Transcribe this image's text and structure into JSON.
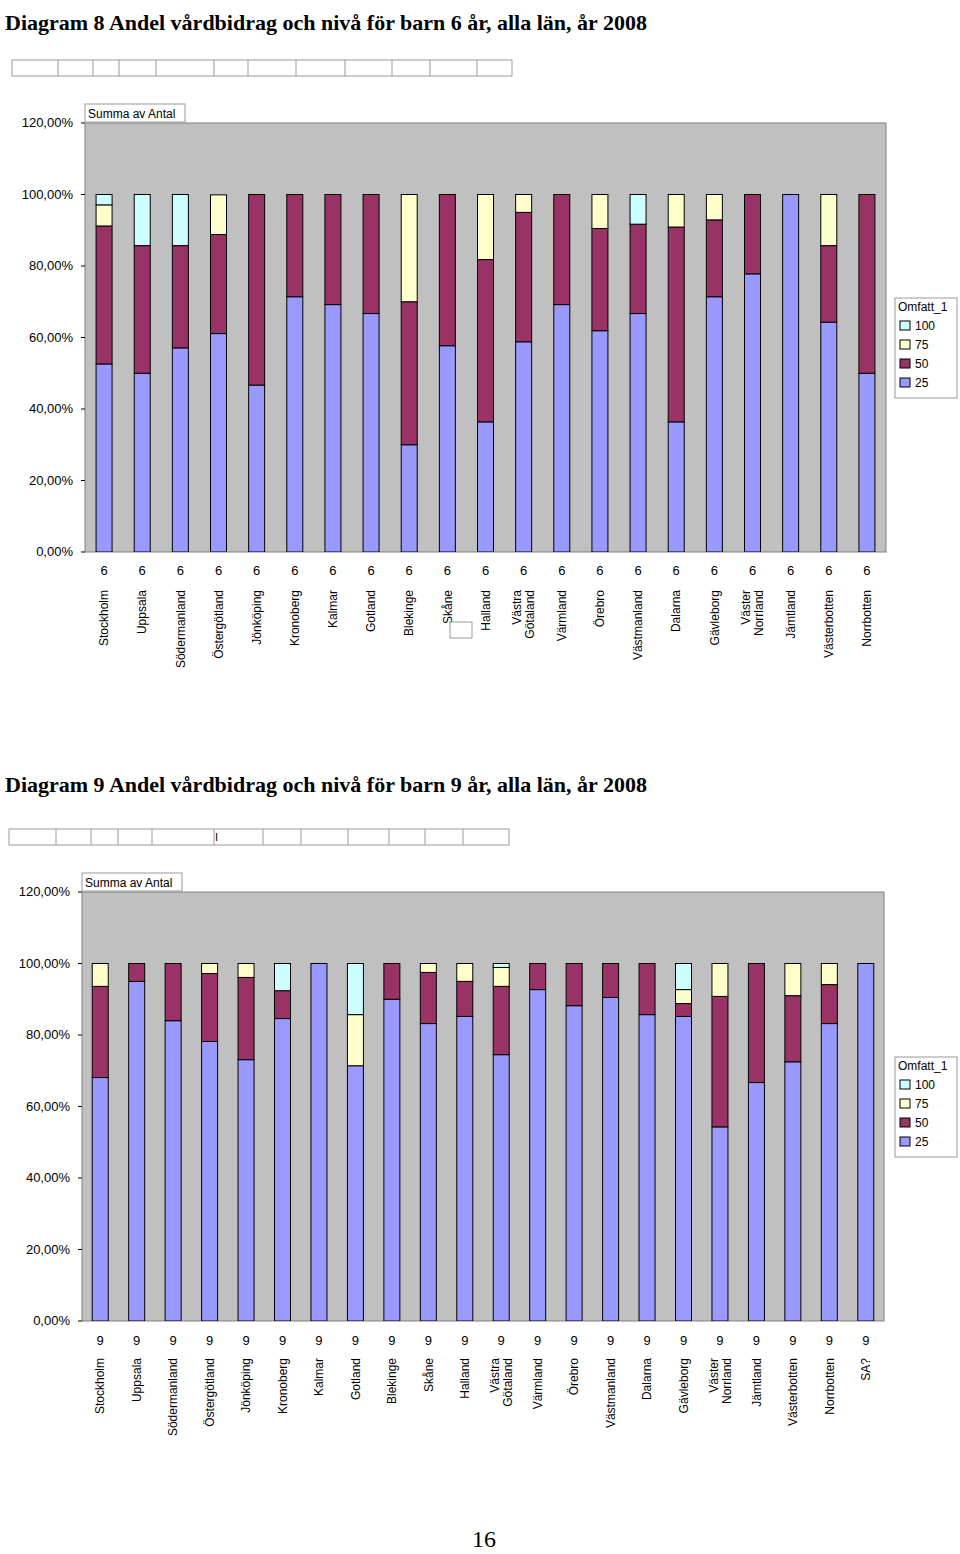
{
  "chart_data": [
    {
      "type": "bar",
      "stacked": true,
      "grid": false,
      "legend": "right",
      "title": "Diagram 8 Andel vårdbidrag och nivå för barn 6 år, alla län, år 2008",
      "annotation": "Summa av Antal",
      "legend_title": "Omfatt_1",
      "categories": [
        "Stockholm",
        "Uppsala",
        "Södermanland",
        "Östergötland",
        "Jönköping",
        "Kronoberg",
        "Kalmar",
        "Gotland",
        "Blekinge",
        "Skåne",
        "Halland",
        "Västra Götaland",
        "Värmland",
        "Örebro",
        "Västmanland",
        "Dalarna",
        "Gävleborg",
        "Väster Norrland",
        "Jämtland",
        "Västerbotten",
        "Norrbotten"
      ],
      "age_labels": [
        "6",
        "6",
        "6",
        "6",
        "6",
        "6",
        "6",
        "6",
        "6",
        "6",
        "6",
        "6",
        "6",
        "6",
        "6",
        "6",
        "6",
        "6",
        "6",
        "6",
        "6"
      ],
      "ylim": [
        0,
        120
      ],
      "yticks": [
        {
          "value": 0,
          "label": "0,00%"
        },
        {
          "value": 20,
          "label": "20,00%"
        },
        {
          "value": 40,
          "label": "40,00%"
        },
        {
          "value": 60,
          "label": "60,00%"
        },
        {
          "value": 80,
          "label": "80,00%"
        },
        {
          "value": 100,
          "label": "100,00%"
        },
        {
          "value": 120,
          "label": "120,00%"
        }
      ],
      "series": [
        {
          "name": "25",
          "color": "#9999ff",
          "values": [
            52.6,
            50,
            57.1,
            61.1,
            46.7,
            71.4,
            69.2,
            66.7,
            30,
            57.7,
            36.4,
            58.8,
            69.2,
            61.9,
            66.7,
            36.4,
            71.4,
            77.8,
            100,
            64.3,
            50
          ]
        },
        {
          "name": "50",
          "color": "#993366",
          "values": [
            38.6,
            35.7,
            28.6,
            27.7,
            53.3,
            28.6,
            30.8,
            33.3,
            40,
            42.3,
            45.4,
            36.2,
            30.8,
            28.6,
            25,
            54.5,
            21.5,
            22.2,
            0,
            21.4,
            50
          ]
        },
        {
          "name": "75",
          "color": "#ffffcc",
          "values": [
            5.9,
            0,
            0,
            11.1,
            0,
            0,
            0,
            0,
            30,
            0,
            18.2,
            5,
            0,
            9.5,
            0,
            9.1,
            7.1,
            0,
            0,
            14.3,
            0
          ]
        },
        {
          "name": "100",
          "color": "#ccffff",
          "values": [
            2.9,
            14.3,
            14.3,
            0,
            0,
            0,
            0,
            0,
            0,
            0,
            0,
            0,
            0,
            0,
            8.3,
            0,
            0,
            0,
            0,
            0,
            0
          ]
        }
      ]
    },
    {
      "type": "bar",
      "stacked": true,
      "grid": false,
      "legend": "right",
      "title": "Diagram 9 Andel vårdbidrag och nivå för barn 9 år, alla län, år 2008",
      "header_cell_text": "I",
      "annotation": "Summa av Antal",
      "legend_title": "Omfatt_1",
      "categories": [
        "Stockholm",
        "Uppsala",
        "Södermanland",
        "Östergötland",
        "Jönköping",
        "Kronoberg",
        "Kalmar",
        "Gotland",
        "Blekinge",
        "Skåne",
        "Halland",
        "Västra Götaland",
        "Värmland",
        "Örebro",
        "Västmanland",
        "Dalarna",
        "Gävleborg",
        "Väster Norrland",
        "Jämtland",
        "Västerbotten",
        "Norrbotten",
        "SA?"
      ],
      "age_labels": [
        "9",
        "9",
        "9",
        "9",
        "9",
        "9",
        "9",
        "9",
        "9",
        "9",
        "9",
        "9",
        "9",
        "9",
        "9",
        "9",
        "9",
        "9",
        "9",
        "9",
        "9",
        "9"
      ],
      "ylim": [
        0,
        120
      ],
      "yticks": [
        {
          "value": 0,
          "label": "0,00%"
        },
        {
          "value": 20,
          "label": "20,00%"
        },
        {
          "value": 40,
          "label": "40,00%"
        },
        {
          "value": 60,
          "label": "60,00%"
        },
        {
          "value": 80,
          "label": "80,00%"
        },
        {
          "value": 100,
          "label": "100,00%"
        },
        {
          "value": 120,
          "label": "120,00%"
        }
      ],
      "series": [
        {
          "name": "25",
          "color": "#9999ff",
          "values": [
            68.1,
            95,
            84,
            78.2,
            73.1,
            84.6,
            100,
            71.4,
            90,
            83.2,
            85.2,
            74.5,
            92.7,
            88.2,
            90.5,
            85.7,
            85.2,
            54.3,
            66.7,
            72.5,
            83.2,
            100
          ]
        },
        {
          "name": "50",
          "color": "#993366",
          "values": [
            25.5,
            5,
            16,
            19,
            23,
            7.8,
            0,
            0,
            10,
            14.3,
            9.8,
            19.1,
            7.3,
            11.8,
            9.5,
            14.3,
            3.6,
            36.5,
            33.3,
            18.5,
            10.9,
            0
          ]
        },
        {
          "name": "75",
          "color": "#ffffcc",
          "values": [
            6.4,
            0,
            0,
            2.8,
            3.9,
            0,
            0,
            14.3,
            0,
            2.5,
            5,
            5.3,
            0,
            0,
            0,
            0,
            3.9,
            9.2,
            0,
            9,
            5.9,
            0
          ]
        },
        {
          "name": "100",
          "color": "#ccffff",
          "values": [
            0,
            0,
            0,
            0,
            0,
            7.6,
            0,
            14.3,
            0,
            0,
            0,
            1.1,
            0,
            0,
            0,
            0,
            7.3,
            0,
            0,
            0,
            0,
            0
          ]
        }
      ]
    }
  ],
  "page_number": "16"
}
